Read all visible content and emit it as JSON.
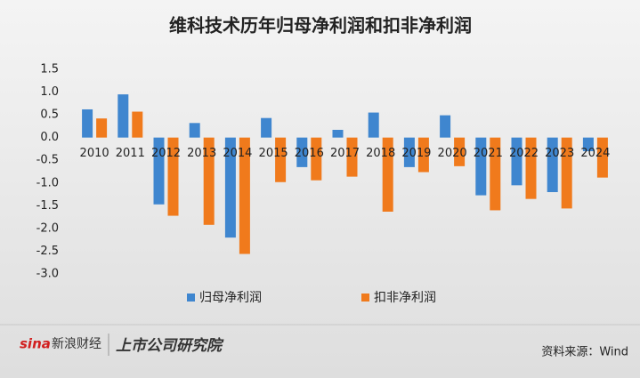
{
  "chart_data": {
    "type": "bar",
    "title": "维科技术历年归母净利润和扣非净利润",
    "categories": [
      "2010",
      "2011",
      "2012",
      "2013",
      "2014",
      "2015",
      "2016",
      "2017",
      "2018",
      "2019",
      "2020",
      "2021",
      "2022",
      "2023",
      "2024"
    ],
    "series": [
      {
        "name": "归母净利润",
        "color": "#3f86cf",
        "values": [
          0.62,
          0.95,
          -1.47,
          0.32,
          -2.2,
          0.43,
          -0.65,
          0.17,
          0.55,
          -0.65,
          0.49,
          -1.27,
          -1.05,
          -1.2,
          -0.3
        ]
      },
      {
        "name": "扣非净利润",
        "color": "#f07a1c",
        "values": [
          0.42,
          0.57,
          -1.72,
          -1.92,
          -2.56,
          -0.98,
          -0.94,
          -0.86,
          -1.63,
          -0.76,
          -0.63,
          -1.6,
          -1.35,
          -1.56,
          -0.88
        ]
      }
    ],
    "ylim": [
      -3,
      1.5
    ],
    "yticks": [
      1.5,
      {
        "value": 1,
        "label": "1.0"
      },
      0.5,
      {
        "value": 0,
        "label": "0.0"
      },
      -0.5,
      {
        "value": -1,
        "label": "-1.0"
      },
      -1.5,
      {
        "value": -2,
        "label": "-2.0"
      },
      -2.5,
      {
        "value": -3,
        "label": "-3.0"
      }
    ],
    "grid": false,
    "source": "资料来源：Wind",
    "brand": [
      "sina",
      "新浪财经",
      "上市公司研究院"
    ]
  }
}
